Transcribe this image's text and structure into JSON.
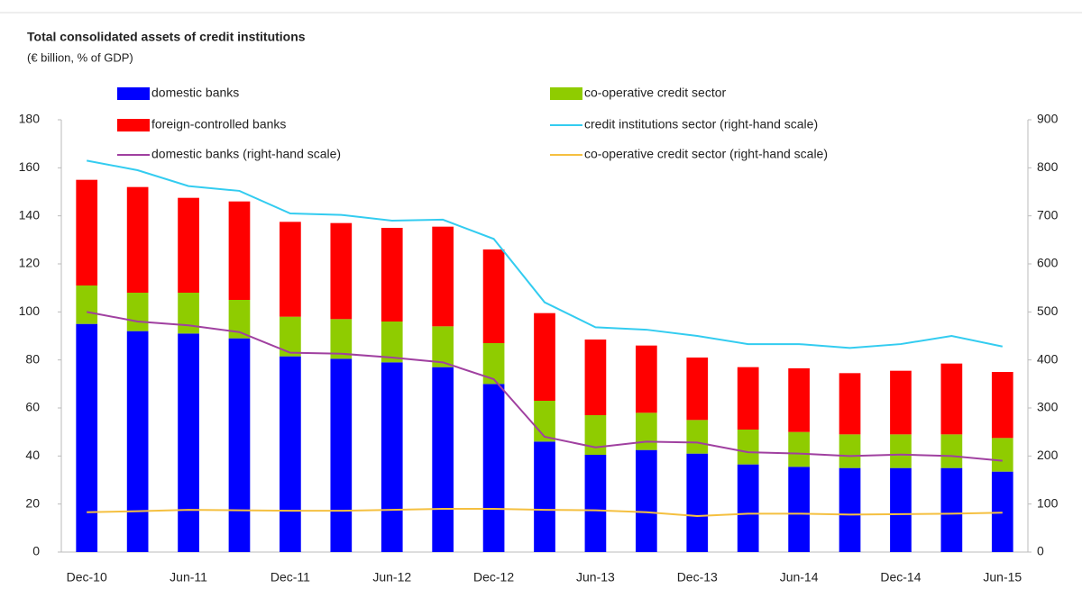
{
  "chart_data": {
    "type": "bar",
    "stacked": true,
    "title": "Total consolidated assets of credit institutions",
    "subtitle": "(€ billion, % of GDP)",
    "categories": [
      "Dec-10",
      null,
      "Jun-11",
      null,
      "Dec-11",
      null,
      "Jun-12",
      null,
      "Dec-12",
      null,
      "Jun-13",
      null,
      "Dec-13",
      null,
      "Jun-14",
      null,
      "Dec-14",
      null,
      "Jun-15"
    ],
    "ylim": [
      0,
      180
    ],
    "yticks": [
      0,
      20,
      40,
      60,
      80,
      100,
      120,
      140,
      160,
      180
    ],
    "y2lim": [
      0,
      900
    ],
    "y2ticks": [
      0,
      100,
      200,
      300,
      400,
      500,
      600,
      700,
      800,
      900
    ],
    "grid": false,
    "series": [
      {
        "name": "domestic banks",
        "type": "bar",
        "color": "#0000ff",
        "values": [
          95,
          92,
          91,
          89,
          81.5,
          80.5,
          79,
          77,
          70,
          46,
          40.5,
          42.5,
          41,
          36.5,
          35.5,
          35,
          35,
          35,
          33.5
        ]
      },
      {
        "name": "co-operative credit sector",
        "type": "bar",
        "color": "#8fcc00",
        "values": [
          16,
          16,
          17,
          16,
          16.5,
          16.5,
          17,
          17,
          17,
          17,
          16.5,
          15.5,
          14,
          14.5,
          14.5,
          14,
          14,
          14,
          14
        ]
      },
      {
        "name": "foreign-controlled banks",
        "type": "bar",
        "color": "#ff0000",
        "values": [
          44,
          44,
          39.5,
          41,
          39.5,
          40,
          39,
          41.5,
          39,
          36.5,
          31.5,
          28,
          26,
          26,
          26.5,
          25.5,
          26.5,
          29.5,
          27.5
        ]
      },
      {
        "name": "credit institutions sector (right-hand scale)",
        "type": "line",
        "axis": "y2",
        "color": "#33ccf0",
        "values": [
          815,
          795,
          762,
          752,
          705,
          702,
          690,
          692,
          652,
          520,
          468,
          463,
          450,
          433,
          433,
          425,
          433,
          450,
          428
        ]
      },
      {
        "name": "domestic banks (right-hand scale)",
        "type": "line",
        "axis": "y2",
        "color": "#a040a0",
        "values": [
          500,
          480,
          472,
          458,
          415,
          413,
          405,
          395,
          360,
          240,
          218,
          230,
          228,
          208,
          205,
          200,
          203,
          200,
          190
        ]
      },
      {
        "name": "co-operative credit sector (right-hand scale)",
        "type": "line",
        "axis": "y2",
        "color": "#f5c040",
        "values": [
          83,
          85,
          88,
          87,
          86,
          86,
          88,
          90,
          90,
          88,
          87,
          83,
          75,
          80,
          80,
          78,
          79,
          80,
          82
        ]
      }
    ]
  }
}
